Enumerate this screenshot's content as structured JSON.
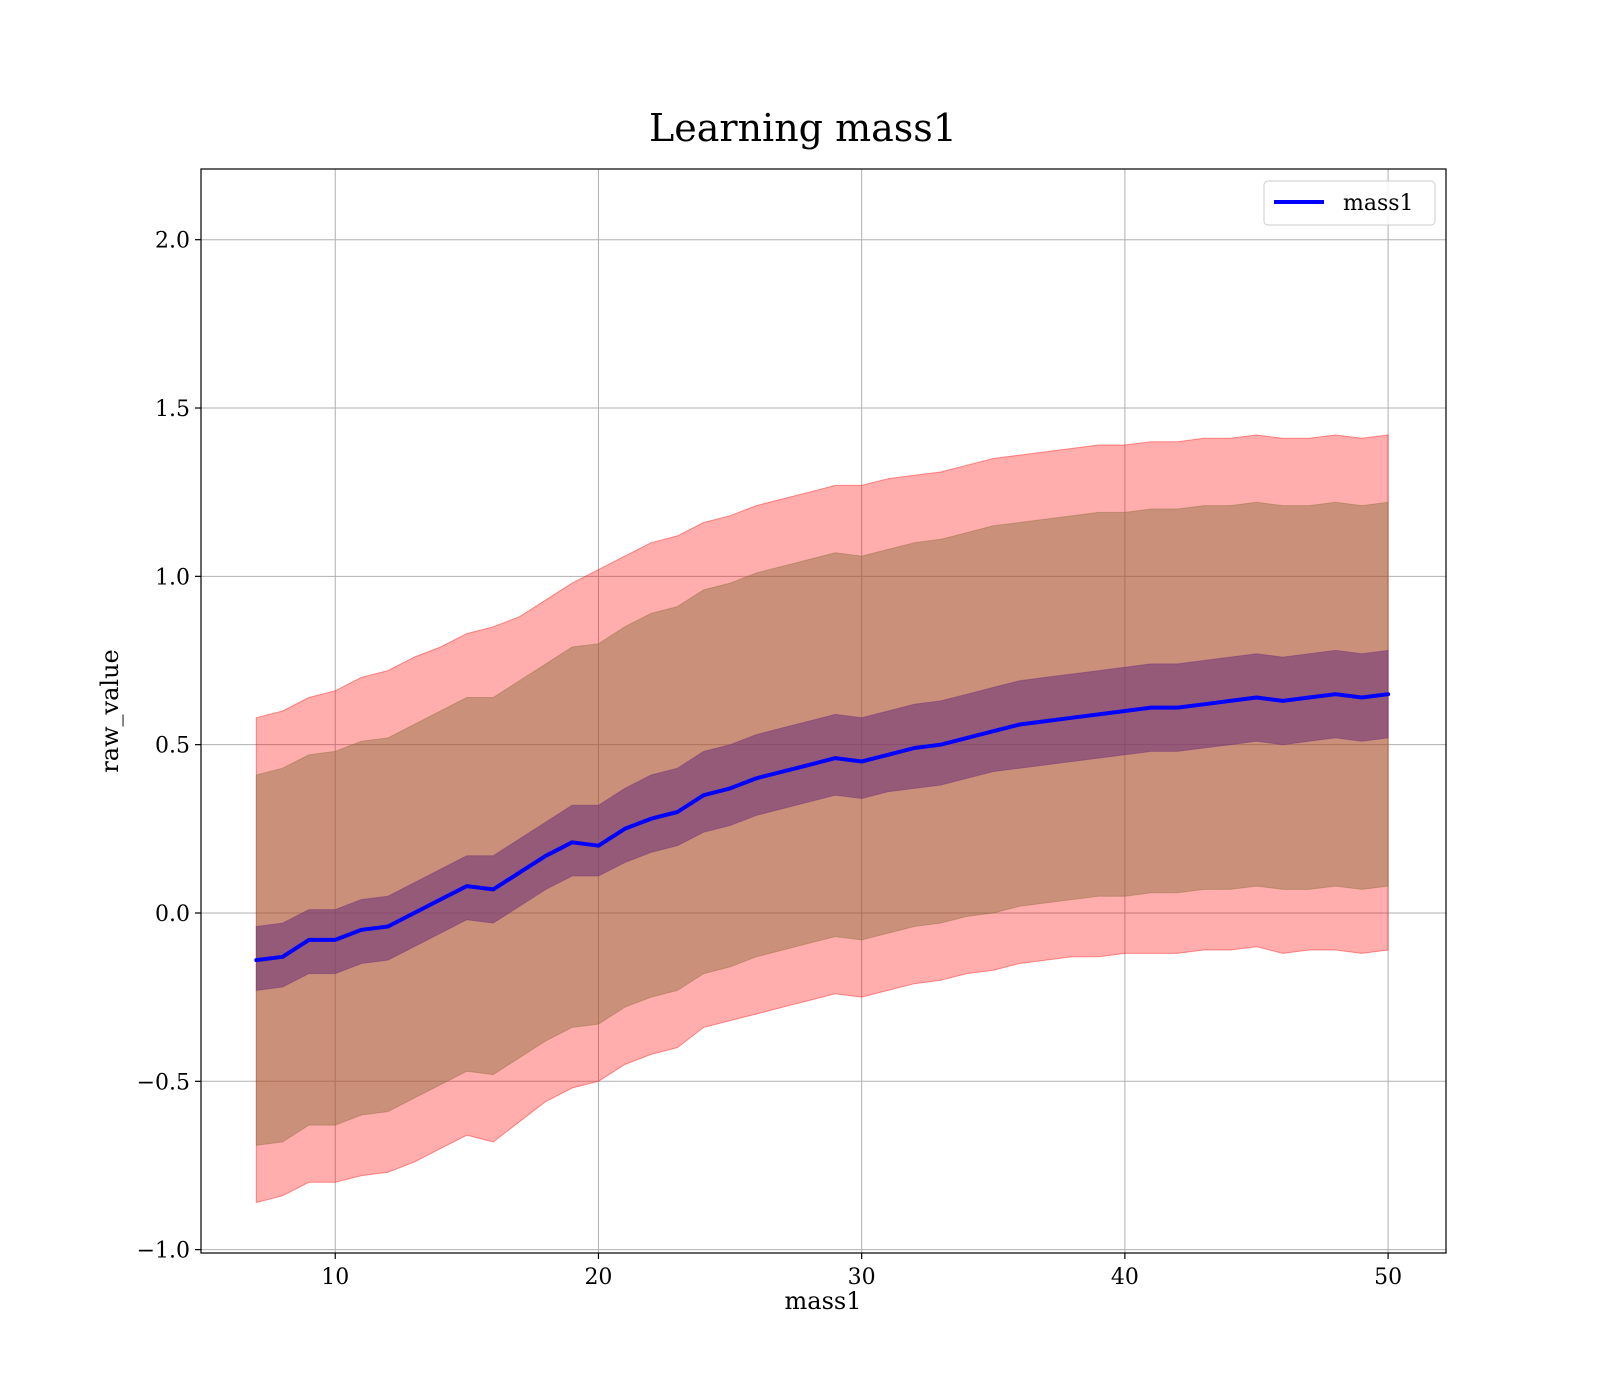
{
  "chart_data": {
    "type": "line",
    "title": "Learning mass1",
    "xlabel": "mass1",
    "ylabel": "raw_value",
    "xlim": [
      4.9,
      52.2
    ],
    "ylim": [
      -1.01,
      2.21
    ],
    "x_ticks": [
      10,
      20,
      30,
      40,
      50
    ],
    "x_tick_labels": [
      "10",
      "20",
      "30",
      "40",
      "50"
    ],
    "y_ticks": [
      -1.0,
      -0.5,
      0.0,
      0.5,
      1.0,
      1.5,
      2.0
    ],
    "y_tick_labels": [
      "−1.0",
      "−0.5",
      "0.0",
      "0.5",
      "1.0",
      "1.5",
      "2.0"
    ],
    "grid": true,
    "legend": {
      "position": "top-right",
      "entries": [
        "mass1"
      ]
    },
    "colors": {
      "line": "#0000ff",
      "outer_band": "#ff0000",
      "middle_band": "#8b6d3a",
      "inner_band": "#6b2d7a"
    },
    "series": [
      {
        "name": "mass1",
        "x": [
          7.0,
          8.0,
          9.0,
          10.0,
          11.0,
          12.0,
          13.0,
          14.0,
          15.0,
          16.0,
          17.0,
          18.0,
          19.0,
          20.0,
          21.0,
          22.0,
          23.0,
          24.0,
          25.0,
          26.0,
          27.0,
          28.0,
          29.0,
          30.0,
          31.0,
          32.0,
          33.0,
          34.0,
          35.0,
          36.0,
          37.0,
          38.0,
          39.0,
          40.0,
          41.0,
          42.0,
          43.0,
          44.0,
          45.0,
          46.0,
          47.0,
          48.0,
          49.0,
          50.0
        ],
        "y": [
          -0.14,
          -0.13,
          -0.08,
          -0.08,
          -0.05,
          -0.04,
          0.0,
          0.04,
          0.08,
          0.07,
          0.12,
          0.17,
          0.21,
          0.2,
          0.25,
          0.28,
          0.3,
          0.35,
          0.37,
          0.4,
          0.42,
          0.44,
          0.46,
          0.45,
          0.47,
          0.49,
          0.5,
          0.52,
          0.54,
          0.56,
          0.57,
          0.58,
          0.59,
          0.6,
          0.61,
          0.61,
          0.62,
          0.63,
          0.64,
          0.63,
          0.64,
          0.65,
          0.64,
          0.65
        ]
      },
      {
        "name": "",
        "type": "band",
        "x": [
          7.0,
          8.0,
          9.0,
          10.0,
          11.0,
          12.0,
          13.0,
          14.0,
          15.0,
          16.0,
          17.0,
          18.0,
          19.0,
          20.0,
          21.0,
          22.0,
          23.0,
          24.0,
          25.0,
          26.0,
          27.0,
          28.0,
          29.0,
          30.0,
          31.0,
          32.0,
          33.0,
          34.0,
          35.0,
          36.0,
          37.0,
          38.0,
          39.0,
          40.0,
          41.0,
          42.0,
          43.0,
          44.0,
          45.0,
          46.0,
          47.0,
          48.0,
          49.0,
          50.0
        ],
        "upper": [
          0.58,
          0.6,
          0.64,
          0.66,
          0.7,
          0.72,
          0.76,
          0.79,
          0.83,
          0.85,
          0.88,
          0.93,
          0.98,
          1.02,
          1.06,
          1.1,
          1.12,
          1.16,
          1.18,
          1.21,
          1.23,
          1.25,
          1.27,
          1.27,
          1.29,
          1.3,
          1.31,
          1.33,
          1.35,
          1.36,
          1.37,
          1.38,
          1.39,
          1.39,
          1.4,
          1.4,
          1.41,
          1.41,
          1.42,
          1.41,
          1.41,
          1.42,
          1.41,
          1.42
        ],
        "lower": [
          -0.86,
          -0.84,
          -0.8,
          -0.8,
          -0.78,
          -0.77,
          -0.74,
          -0.7,
          -0.66,
          -0.68,
          -0.62,
          -0.56,
          -0.52,
          -0.5,
          -0.45,
          -0.42,
          -0.4,
          -0.34,
          -0.32,
          -0.3,
          -0.28,
          -0.26,
          -0.24,
          -0.25,
          -0.23,
          -0.21,
          -0.2,
          -0.18,
          -0.17,
          -0.15,
          -0.14,
          -0.13,
          -0.13,
          -0.12,
          -0.12,
          -0.12,
          -0.11,
          -0.11,
          -0.1,
          -0.12,
          -0.11,
          -0.11,
          -0.12,
          -0.11
        ]
      },
      {
        "name": "",
        "type": "band",
        "x": [
          7.0,
          8.0,
          9.0,
          10.0,
          11.0,
          12.0,
          13.0,
          14.0,
          15.0,
          16.0,
          17.0,
          18.0,
          19.0,
          20.0,
          21.0,
          22.0,
          23.0,
          24.0,
          25.0,
          26.0,
          27.0,
          28.0,
          29.0,
          30.0,
          31.0,
          32.0,
          33.0,
          34.0,
          35.0,
          36.0,
          37.0,
          38.0,
          39.0,
          40.0,
          41.0,
          42.0,
          43.0,
          44.0,
          45.0,
          46.0,
          47.0,
          48.0,
          49.0,
          50.0
        ],
        "upper": [
          0.41,
          0.43,
          0.47,
          0.48,
          0.51,
          0.52,
          0.56,
          0.6,
          0.64,
          0.64,
          0.69,
          0.74,
          0.79,
          0.8,
          0.85,
          0.89,
          0.91,
          0.96,
          0.98,
          1.01,
          1.03,
          1.05,
          1.07,
          1.06,
          1.08,
          1.1,
          1.11,
          1.13,
          1.15,
          1.16,
          1.17,
          1.18,
          1.19,
          1.19,
          1.2,
          1.2,
          1.21,
          1.21,
          1.22,
          1.21,
          1.21,
          1.22,
          1.21,
          1.22
        ],
        "lower": [
          -0.69,
          -0.68,
          -0.63,
          -0.63,
          -0.6,
          -0.59,
          -0.55,
          -0.51,
          -0.47,
          -0.48,
          -0.43,
          -0.38,
          -0.34,
          -0.33,
          -0.28,
          -0.25,
          -0.23,
          -0.18,
          -0.16,
          -0.13,
          -0.11,
          -0.09,
          -0.07,
          -0.08,
          -0.06,
          -0.04,
          -0.03,
          -0.01,
          0.0,
          0.02,
          0.03,
          0.04,
          0.05,
          0.05,
          0.06,
          0.06,
          0.07,
          0.07,
          0.08,
          0.07,
          0.07,
          0.08,
          0.07,
          0.08
        ]
      },
      {
        "name": "",
        "type": "band",
        "x": [
          7.0,
          8.0,
          9.0,
          10.0,
          11.0,
          12.0,
          13.0,
          14.0,
          15.0,
          16.0,
          17.0,
          18.0,
          19.0,
          20.0,
          21.0,
          22.0,
          23.0,
          24.0,
          25.0,
          26.0,
          27.0,
          28.0,
          29.0,
          30.0,
          31.0,
          32.0,
          33.0,
          34.0,
          35.0,
          36.0,
          37.0,
          38.0,
          39.0,
          40.0,
          41.0,
          42.0,
          43.0,
          44.0,
          45.0,
          46.0,
          47.0,
          48.0,
          49.0,
          50.0
        ],
        "upper": [
          -0.04,
          -0.03,
          0.01,
          0.01,
          0.04,
          0.05,
          0.09,
          0.13,
          0.17,
          0.17,
          0.22,
          0.27,
          0.32,
          0.32,
          0.37,
          0.41,
          0.43,
          0.48,
          0.5,
          0.53,
          0.55,
          0.57,
          0.59,
          0.58,
          0.6,
          0.62,
          0.63,
          0.65,
          0.67,
          0.69,
          0.7,
          0.71,
          0.72,
          0.73,
          0.74,
          0.74,
          0.75,
          0.76,
          0.77,
          0.76,
          0.77,
          0.78,
          0.77,
          0.78
        ],
        "lower": [
          -0.23,
          -0.22,
          -0.18,
          -0.18,
          -0.15,
          -0.14,
          -0.1,
          -0.06,
          -0.02,
          -0.03,
          0.02,
          0.07,
          0.11,
          0.11,
          0.15,
          0.18,
          0.2,
          0.24,
          0.26,
          0.29,
          0.31,
          0.33,
          0.35,
          0.34,
          0.36,
          0.37,
          0.38,
          0.4,
          0.42,
          0.43,
          0.44,
          0.45,
          0.46,
          0.47,
          0.48,
          0.48,
          0.49,
          0.5,
          0.51,
          0.5,
          0.51,
          0.52,
          0.51,
          0.52
        ]
      }
    ]
  }
}
